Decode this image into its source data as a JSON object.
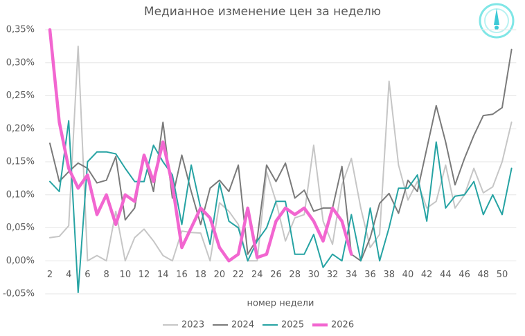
{
  "chart_data": {
    "type": "line",
    "title": "Медианное изменение цен за неделю",
    "x_label": "номер недели",
    "x": [
      2,
      3,
      4,
      5,
      6,
      7,
      8,
      9,
      10,
      11,
      12,
      13,
      14,
      15,
      16,
      17,
      18,
      19,
      20,
      21,
      22,
      23,
      24,
      25,
      26,
      27,
      28,
      29,
      30,
      31,
      32,
      33,
      34,
      35,
      36,
      37,
      38,
      39,
      40,
      41,
      42,
      43,
      44,
      45,
      46,
      47,
      48,
      49,
      50,
      51
    ],
    "xlim": [
      1.5,
      51.5
    ],
    "xticks": [
      2,
      4,
      6,
      8,
      10,
      12,
      14,
      16,
      18,
      20,
      22,
      24,
      26,
      28,
      30,
      32,
      34,
      36,
      38,
      40,
      42,
      44,
      46,
      48,
      50
    ],
    "ylim": [
      -0.05,
      0.35
    ],
    "yticks": [
      {
        "value": -0.05,
        "label": "-0,05%"
      },
      {
        "value": 0,
        "label": "0,00%"
      },
      {
        "value": 0.05,
        "label": "0,05%"
      },
      {
        "value": 0.1,
        "label": "0,10%"
      },
      {
        "value": 0.15,
        "label": "0,15%"
      },
      {
        "value": 0.2,
        "label": "0,20%"
      },
      {
        "value": 0.25,
        "label": "0,25%"
      },
      {
        "value": 0.3,
        "label": "0,30%"
      },
      {
        "value": 0.35,
        "label": "0,35%"
      }
    ],
    "grid": true,
    "legend": "bottom",
    "series": [
      {
        "name": "2023",
        "color": "#c6c6c6",
        "width": 2,
        "values": [
          0.035,
          0.037,
          0.053,
          0.325,
          0.0,
          0.008,
          0.0,
          0.075,
          0.0,
          0.035,
          0.048,
          0.03,
          0.008,
          0.0,
          0.045,
          0.043,
          0.042,
          0.0,
          0.088,
          0.075,
          0.055,
          0.0,
          0.0,
          0.135,
          0.09,
          0.03,
          0.065,
          0.07,
          0.175,
          0.06,
          0.025,
          0.115,
          0.155,
          0.08,
          0.02,
          0.04,
          0.272,
          0.145,
          0.092,
          0.12,
          0.08,
          0.09,
          0.145,
          0.08,
          0.1,
          0.14,
          0.103,
          0.112,
          0.15,
          0.21
        ]
      },
      {
        "name": "2024",
        "color": "#7a7a7a",
        "width": 2,
        "values": [
          0.178,
          0.12,
          0.135,
          0.148,
          0.14,
          0.118,
          0.122,
          0.158,
          0.062,
          0.08,
          0.16,
          0.105,
          0.21,
          0.095,
          0.16,
          0.105,
          0.055,
          0.11,
          0.122,
          0.105,
          0.145,
          0.01,
          0.033,
          0.145,
          0.12,
          0.148,
          0.095,
          0.107,
          0.075,
          0.08,
          0.08,
          0.143,
          0.01,
          0.0,
          0.035,
          0.087,
          0.102,
          0.072,
          0.122,
          0.105,
          0.17,
          0.235,
          0.18,
          0.115,
          0.155,
          0.19,
          0.22,
          0.222,
          0.232,
          0.32
        ]
      },
      {
        "name": "2025",
        "color": "#26a3a3",
        "width": 2,
        "values": [
          0.12,
          0.105,
          0.212,
          -0.048,
          0.15,
          0.165,
          0.165,
          0.162,
          0.14,
          0.12,
          0.12,
          0.175,
          0.15,
          0.13,
          0.055,
          0.145,
          0.08,
          0.025,
          0.118,
          0.06,
          0.05,
          0.0,
          0.03,
          0.05,
          0.09,
          0.09,
          0.01,
          0.01,
          0.04,
          -0.01,
          0.01,
          0.0,
          0.07,
          0.0,
          0.08,
          0.0,
          0.05,
          0.11,
          0.11,
          0.13,
          0.06,
          0.18,
          0.08,
          0.098,
          0.1,
          0.12,
          0.07,
          0.1,
          0.07,
          0.14
        ]
      },
      {
        "name": "2026",
        "color": "#f266d0",
        "width": 4.5,
        "values": [
          0.35,
          0.21,
          0.14,
          0.11,
          0.13,
          0.07,
          0.1,
          0.055,
          0.1,
          0.09,
          0.16,
          0.12,
          0.18,
          0.115,
          0.02,
          0.05,
          0.08,
          0.065,
          0.02,
          0.0,
          0.01,
          0.08,
          0.005,
          0.01,
          0.06,
          0.08,
          0.07,
          0.08,
          0.06,
          0.03,
          0.08,
          0.06,
          0.01,
          null,
          null,
          null,
          null,
          null,
          null,
          null,
          null,
          null,
          null,
          null,
          null,
          null,
          null,
          null,
          null,
          null
        ]
      }
    ]
  }
}
